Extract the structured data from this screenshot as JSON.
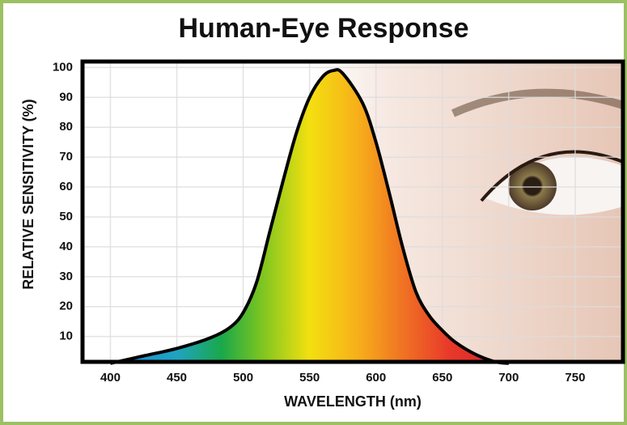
{
  "chart_data": {
    "type": "area",
    "title": "Human-Eye Response",
    "x_label": "WAVELENGTH (nm)",
    "y_label": "RELATIVE SENSITIVITY (%)",
    "x": [
      400,
      425,
      450,
      475,
      490,
      500,
      510,
      520,
      530,
      540,
      550,
      560,
      568,
      575,
      590,
      600,
      610,
      620,
      630,
      640,
      650,
      660,
      675,
      690,
      700
    ],
    "values": [
      1,
      3.5,
      6,
      9.5,
      13,
      18,
      28,
      45,
      62,
      78,
      90,
      97,
      99,
      98,
      88,
      75,
      58,
      40,
      25,
      17,
      12,
      8,
      4,
      1.5,
      1
    ],
    "xlim": [
      379,
      786
    ],
    "ylim": [
      1.5,
      102
    ],
    "xticks": [
      400,
      450,
      500,
      550,
      600,
      650,
      700,
      750
    ],
    "yticks": [
      10,
      20,
      30,
      40,
      50,
      60,
      70,
      80,
      90,
      100
    ],
    "grid": true
  }
}
